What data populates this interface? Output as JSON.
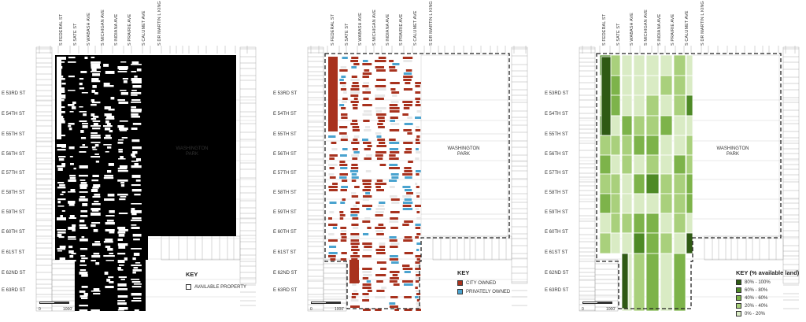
{
  "streets_top": [
    "S FEDERAL ST",
    "S SATE ST",
    "S WABASH AVE",
    "S MICHIGAN AVE",
    "S INDIANA AVE",
    "S PRAIRIE AVE",
    "S CALUMET AVE",
    "S DR MARTIN L KING JR DR"
  ],
  "streets_left": [
    "E 53RD ST",
    "E 54TH ST",
    "E 55TH ST",
    "E 56TH ST",
    "E 57TH ST",
    "E 58TH ST",
    "E 59TH ST",
    "E 60TH ST",
    "E 61ST ST",
    "E 62ND ST",
    "E 63RD ST"
  ],
  "park_label": "WASHINGTON PARK",
  "scale": {
    "zero": "0",
    "distance": "1000'"
  },
  "panels": [
    {
      "key_title": "KEY",
      "key_items": [
        {
          "label": "AVAILABLE PROPERTY",
          "color": "#ffffff"
        }
      ]
    },
    {
      "key_title": "KEY",
      "key_items": [
        {
          "label": "CITY OWNED",
          "color": "#a8321e"
        },
        {
          "label": "PRIVATELY OWNED",
          "color": "#4aa3cf"
        }
      ]
    },
    {
      "key_title": "KEY (% available land)",
      "key_items": [
        {
          "label": "80% - 100%",
          "color": "#2f5a14"
        },
        {
          "label": "60% - 80%",
          "color": "#4e8a26"
        },
        {
          "label": "40% - 60%",
          "color": "#7db34a"
        },
        {
          "label": "20% - 40%",
          "color": "#a9d07c"
        },
        {
          "label": "0% - 20%",
          "color": "#d9ebc4"
        }
      ]
    }
  ],
  "colors": {
    "black": "#000000",
    "city_owned": "#a8321e",
    "privately_owned": "#4aa3cf",
    "outline": "#222222",
    "context": "#9a9a9a"
  }
}
